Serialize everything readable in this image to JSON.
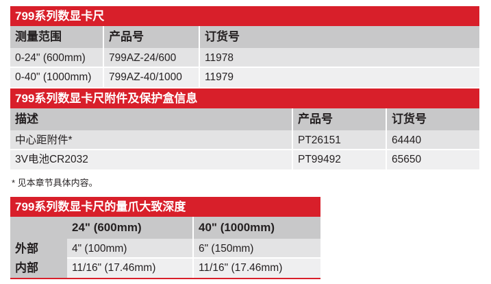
{
  "table1": {
    "title": "799系列数显卡尺",
    "headers": [
      "测量范围",
      "产品号",
      "订货号"
    ],
    "rows": [
      [
        "0-24\" (600mm)",
        "799AZ-24/600",
        "11978"
      ],
      [
        "0-40\" (1000mm)",
        "799AZ-40/1000",
        "11979"
      ]
    ]
  },
  "table2": {
    "title": "799系列数显卡尺附件及保护盒信息",
    "headers": [
      "描述",
      "产品号",
      "订货号"
    ],
    "rows": [
      [
        "中心距附件*",
        "PT26151",
        "64440"
      ],
      [
        "3V电池CR2032",
        "PT99492",
        "65650"
      ]
    ]
  },
  "note": "* 见本章节具体内容。",
  "table3": {
    "title": "799系列数显卡尺的量爪大致深度",
    "headers": [
      "",
      "24\" (600mm)",
      "40\" (1000mm)"
    ],
    "rows": [
      [
        "外部",
        "4\" (100mm)",
        "6\" (150mm)"
      ],
      [
        "内部",
        "11/16\" (17.46mm)",
        "11/16\" (17.46mm)"
      ]
    ]
  },
  "colors": {
    "accent": "#d81f2a",
    "header": "#c8c8c9"
  }
}
